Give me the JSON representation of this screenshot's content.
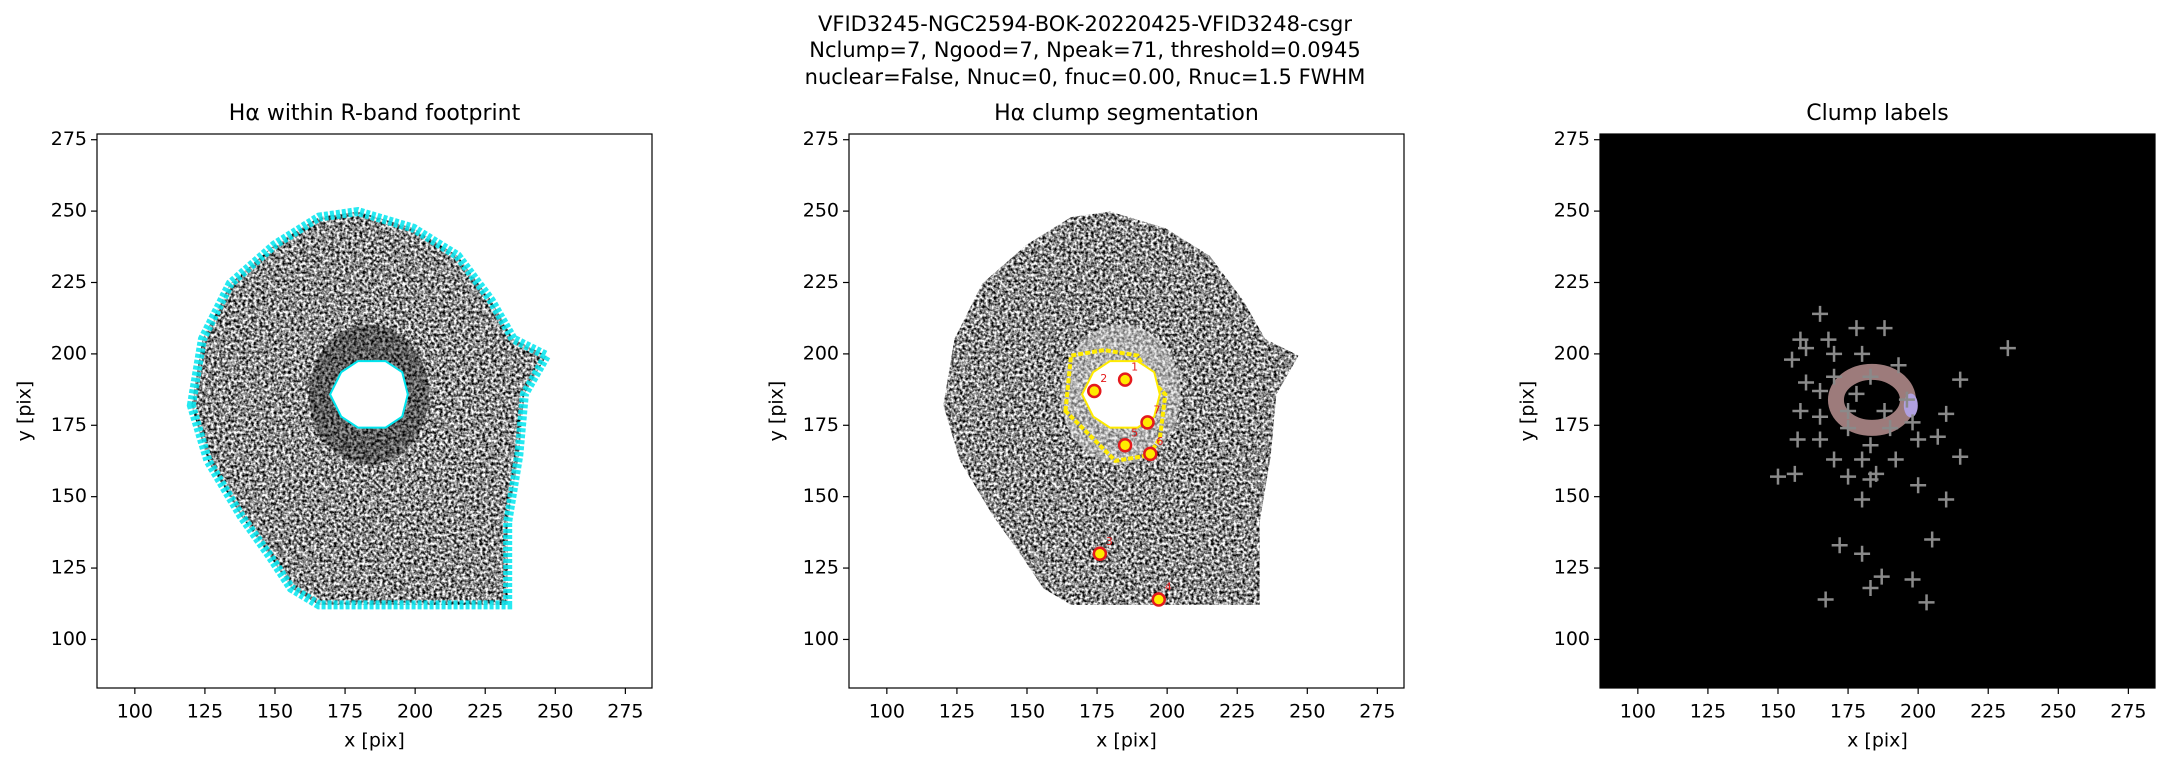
{
  "suptitle": [
    "VFID3245-NGC2594-BOK-20220425-VFID3248-csgr",
    "Nclump=7, Ngood=7, Npeak=71, threshold=0.0945",
    "nuclear=False, Nnuc=0, fnuc=0.00, Rnuc=1.5 FWHM"
  ],
  "chart_data": [
    {
      "type": "image",
      "title": "Hα within R-band footprint",
      "style": "footprint",
      "xlabel": "x [pix]",
      "ylabel": "y [pix]",
      "xlim": [
        86.5,
        284.5
      ],
      "ylim": [
        83,
        277
      ],
      "xticks": [
        100,
        125,
        150,
        175,
        200,
        225,
        250,
        275
      ],
      "yticks": [
        100,
        125,
        150,
        175,
        200,
        225,
        250,
        275
      ]
    },
    {
      "type": "image",
      "title": "Hα clump segmentation",
      "style": "segmentation",
      "xlabel": "x [pix]",
      "ylabel": "y [pix]",
      "xlim": [
        86.5,
        284.5
      ],
      "ylim": [
        83,
        277
      ],
      "xticks": [
        100,
        125,
        150,
        175,
        200,
        225,
        250,
        275
      ],
      "yticks": [
        100,
        125,
        150,
        175,
        200,
        225,
        250,
        275
      ],
      "points": {
        "marker": "circle",
        "color": "#e41a1c",
        "labels": [
          "1",
          "2",
          "3",
          "4",
          "5",
          "6",
          "7"
        ],
        "x": [
          185,
          174,
          176,
          197,
          185,
          194,
          193
        ],
        "y": [
          191,
          187,
          130,
          114,
          168,
          165,
          176
        ]
      }
    },
    {
      "type": "image",
      "title": "Clump labels",
      "style": "labels",
      "xlabel": "x [pix]",
      "ylabel": "y [pix]",
      "xlim": [
        86.5,
        284.5
      ],
      "ylim": [
        83,
        277
      ],
      "xticks": [
        100,
        125,
        150,
        175,
        200,
        225,
        250,
        275
      ],
      "yticks": [
        100,
        125,
        150,
        175,
        200,
        225,
        250,
        275
      ],
      "points": {
        "marker": "plus",
        "color": "#8a8a8a",
        "x": [
          165,
          158,
          168,
          178,
          188,
          155,
          160,
          170,
          180,
          160,
          170,
          183,
          193,
          215,
          232,
          165,
          178,
          196,
          158,
          165,
          175,
          188,
          210,
          198,
          175,
          190,
          157,
          165,
          183,
          200,
          207,
          215,
          170,
          180,
          192,
          175,
          183,
          150,
          156,
          200,
          180,
          210,
          205,
          172,
          180,
          187,
          198,
          183,
          167,
          203,
          185
        ],
        "y": [
          214,
          205,
          205,
          209,
          209,
          198,
          202,
          200,
          200,
          190,
          192,
          192,
          196,
          191,
          202,
          187,
          186,
          184,
          180,
          178,
          180,
          180,
          179,
          176,
          174,
          174,
          170,
          170,
          168,
          170,
          171,
          164,
          163,
          163,
          163,
          157,
          156,
          157,
          158,
          154,
          149,
          149,
          135,
          133,
          130,
          122,
          121,
          118,
          114,
          113,
          158
        ]
      }
    }
  ]
}
